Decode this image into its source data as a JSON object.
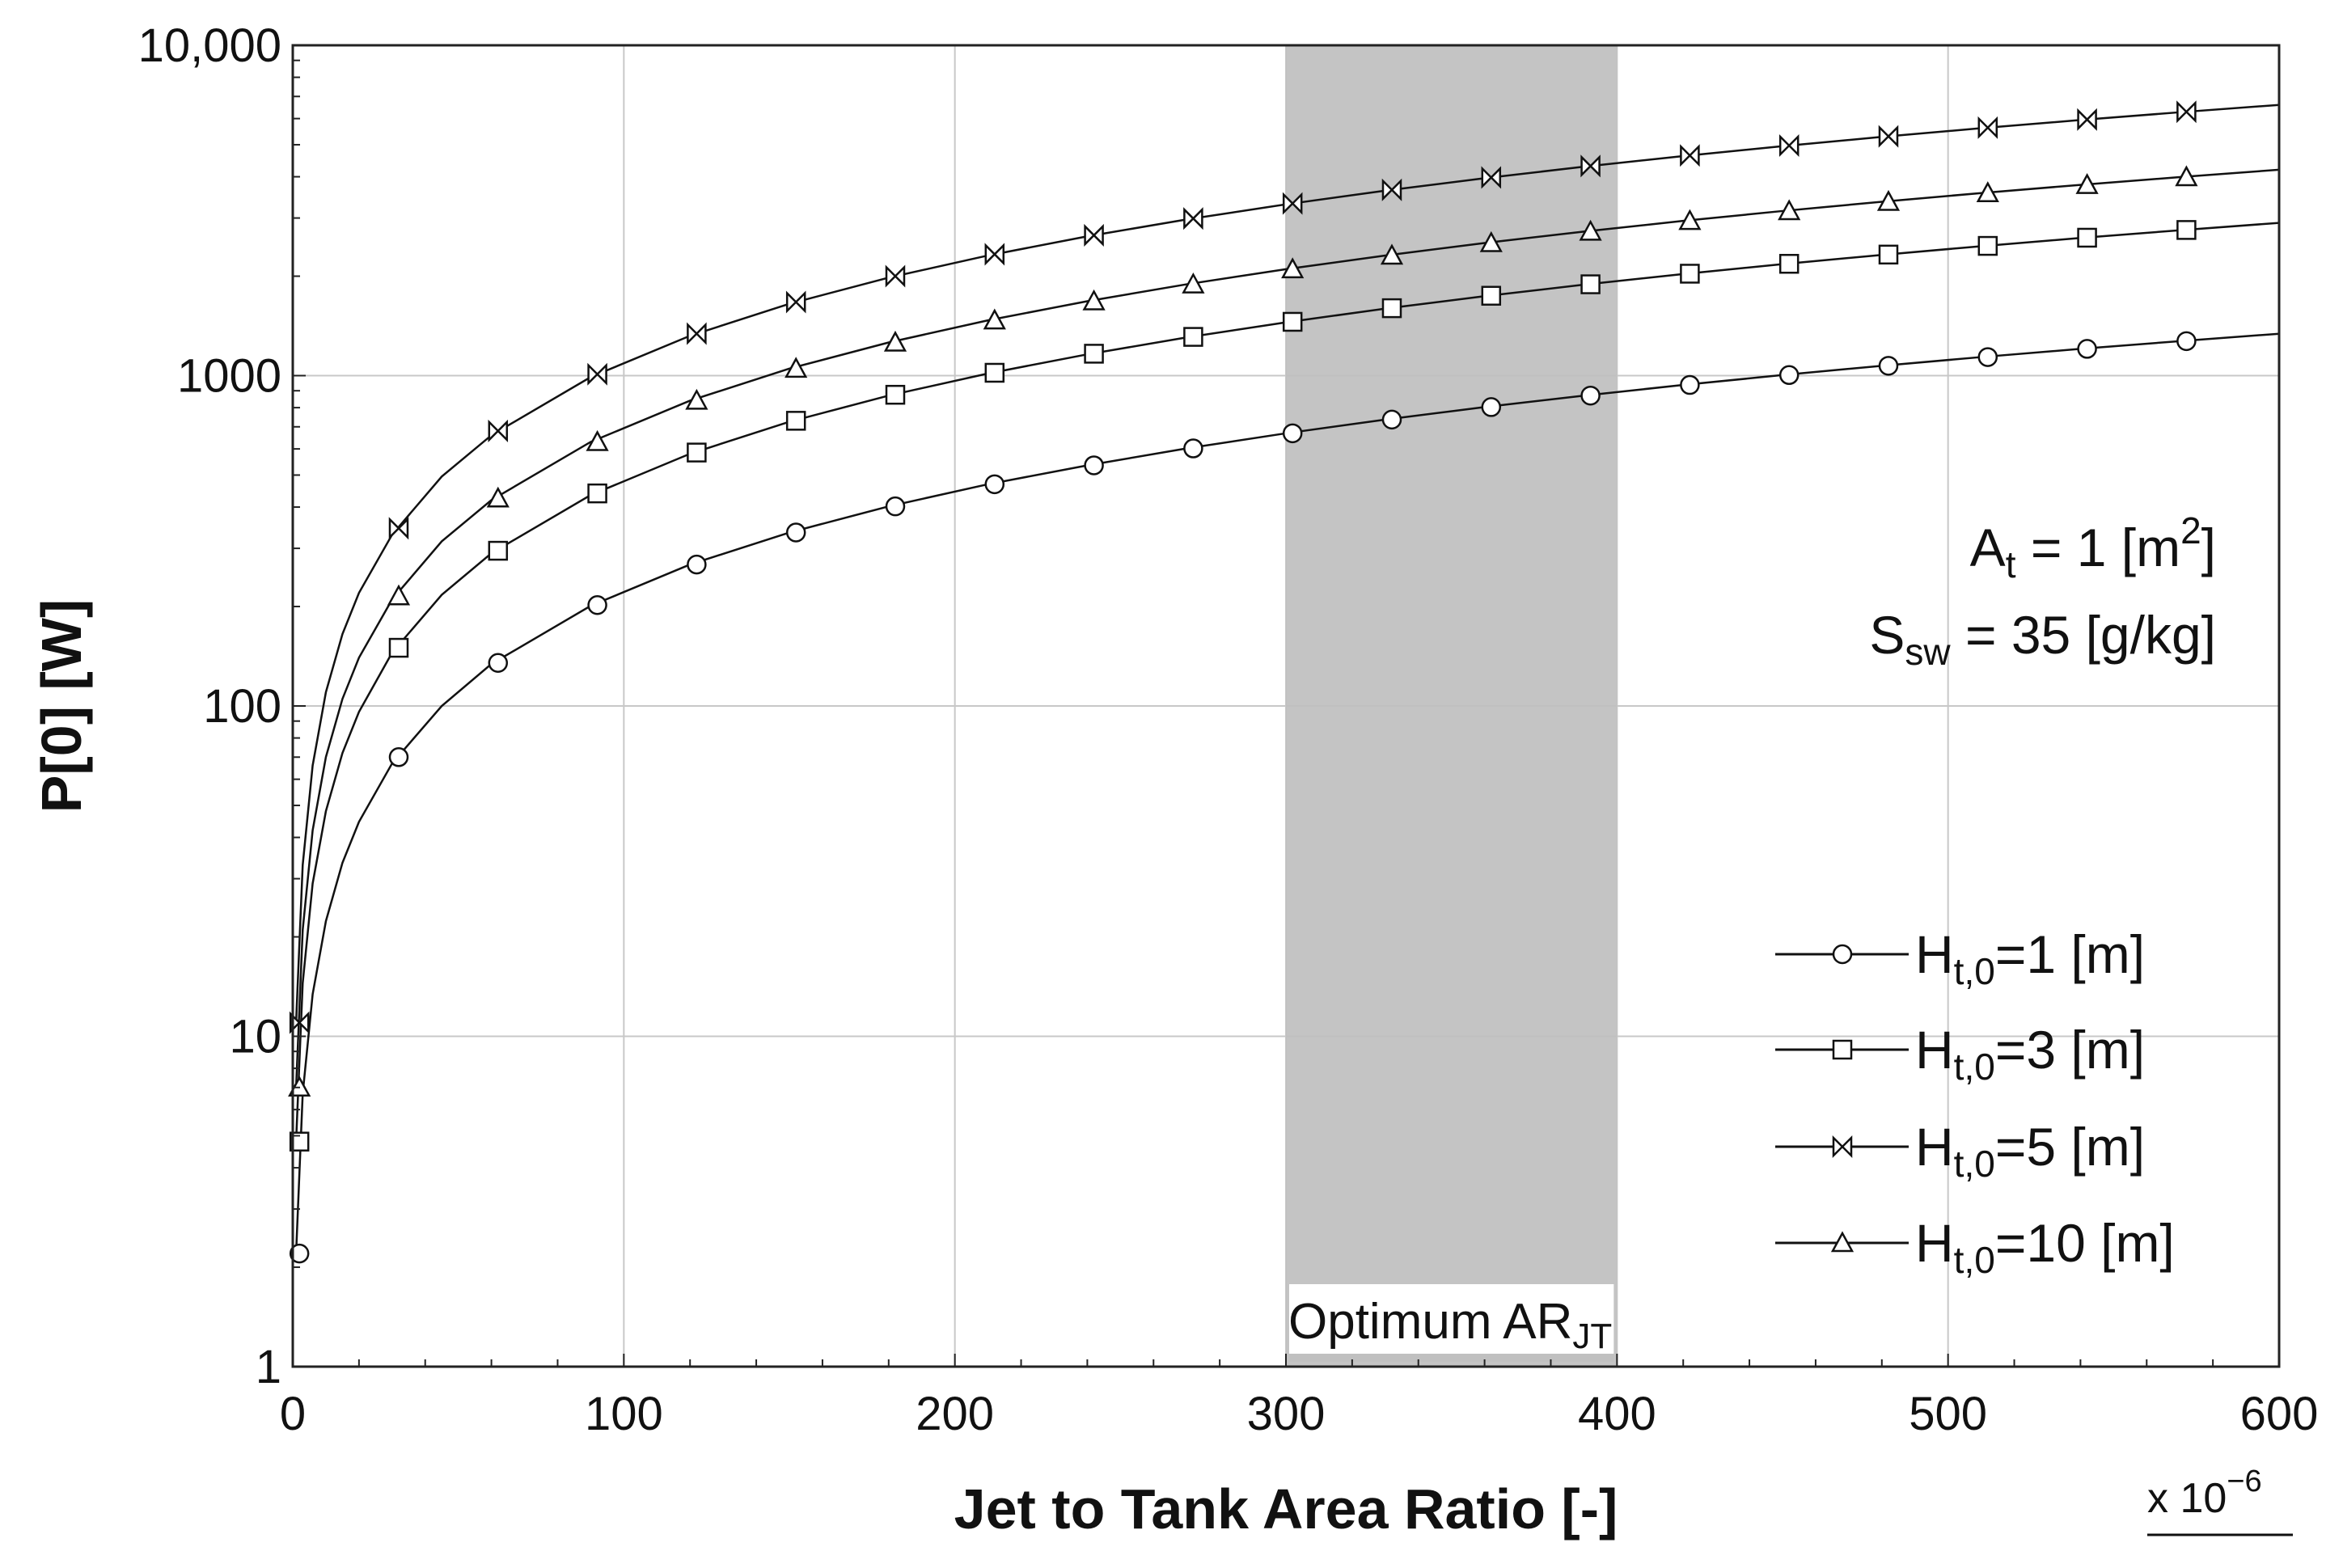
{
  "chart_data": {
    "type": "line",
    "xlabel": "Jet to Tank Area Ratio [-]",
    "ylabel": "P[0]  [W]",
    "xscale": "linear",
    "yscale": "log",
    "xlim": [
      0,
      600
    ],
    "ylim": [
      1,
      10000
    ],
    "x_multiplier_label": "x 10",
    "x_multiplier_exp": "−6",
    "xticks": [
      0,
      100,
      200,
      300,
      400,
      500,
      600
    ],
    "xtick_labels": [
      "0",
      "100",
      "200",
      "300",
      "400",
      "500",
      "600"
    ],
    "yticks": [
      1,
      10,
      100,
      1000,
      10000
    ],
    "ytick_labels": [
      "1",
      "10",
      "100",
      "1000",
      "10,000"
    ],
    "grid": true,
    "legend_position": "bottom-right",
    "optimum_band": {
      "x_range": [
        300,
        400
      ],
      "label": "Optimum AR",
      "label_sub": "JT"
    },
    "annotations": [
      {
        "main": "A",
        "sub": "t",
        "rest": " = 1 [m",
        "sup": "2",
        "end": "]"
      },
      {
        "main": "S",
        "sub": "sw",
        "rest": " = 35 [g/kg]",
        "sup": "",
        "end": ""
      }
    ],
    "x_line": [
      1,
      3,
      6,
      10,
      15,
      20,
      30,
      45,
      60,
      90,
      120,
      150,
      180,
      210,
      240,
      270,
      300,
      330,
      360,
      390,
      420,
      450,
      480,
      510,
      540,
      570,
      600
    ],
    "series": [
      {
        "name": "H_t,0=1 [m]",
        "label_main": "H",
        "label_sub": "t,0",
        "label_rest": "=1 [m]",
        "marker": "circle",
        "values": [
          2.2,
          6.7,
          13.4,
          22.3,
          33.5,
          44.6,
          67,
          100,
          134,
          201,
          268,
          335,
          402,
          469,
          535,
          602,
          669,
          736,
          803,
          870,
          937,
          1004,
          1071,
          1138,
          1205,
          1272,
          1339
        ],
        "marker_x": [
          2,
          32,
          62,
          92,
          122,
          152,
          182,
          212,
          242,
          272,
          302,
          332,
          362,
          392,
          422,
          452,
          482,
          512,
          542,
          572
        ],
        "marker_y": [
          2.2,
          70,
          135,
          202,
          268,
          335,
          402,
          469,
          535,
          602,
          669,
          736,
          803,
          870,
          937,
          1004,
          1071,
          1138,
          1205,
          1272
        ]
      },
      {
        "name": "H_t,0=3 [m]",
        "label_main": "H",
        "label_sub": "t,0",
        "label_rest": "=3 [m]",
        "marker": "square",
        "values": [
          4.8,
          14.5,
          29,
          48,
          72,
          96,
          145,
          217,
          290,
          435,
          580,
          725,
          870,
          1015,
          1160,
          1305,
          1450,
          1595,
          1740,
          1885,
          2030,
          2175,
          2320,
          2465,
          2610,
          2755,
          2900
        ],
        "marker_x": [
          2,
          32,
          62,
          92,
          122,
          152,
          182,
          212,
          242,
          272,
          302,
          332,
          362,
          392,
          422,
          452,
          482,
          512,
          542,
          572
        ],
        "marker_y": [
          4.8,
          150,
          295,
          440,
          585,
          730,
          875,
          1020,
          1165,
          1310,
          1455,
          1600,
          1745,
          1890,
          2035,
          2180,
          2325,
          2470,
          2615,
          2760
        ]
      },
      {
        "name": "H_t,0=5 [m]",
        "label_main": "H",
        "label_sub": "t,0",
        "label_rest": "=5 [m]",
        "marker": "bowtie",
        "values": [
          11,
          33,
          66,
          110,
          165,
          220,
          330,
          495,
          660,
          990,
          1320,
          1650,
          1980,
          2310,
          2640,
          2970,
          3300,
          3630,
          3960,
          4290,
          4620,
          4950,
          5280,
          5610,
          5940,
          6270,
          6600
        ],
        "marker_x": [
          2,
          32,
          62,
          92,
          122,
          152,
          182,
          212,
          242,
          272,
          302,
          332,
          362,
          392,
          422,
          452,
          482,
          512,
          542,
          572
        ],
        "marker_y": [
          11,
          345,
          680,
          1010,
          1340,
          1670,
          2000,
          2330,
          2660,
          2990,
          3320,
          3650,
          3980,
          4310,
          4640,
          4970,
          5300,
          5630,
          5960,
          6290
        ]
      },
      {
        "name": "H_t,0=10 [m]",
        "label_main": "H",
        "label_sub": "t,0",
        "label_rest": "=10 [m]",
        "marker": "triangle",
        "values": [
          7,
          21,
          42,
          70,
          105,
          140,
          210,
          315,
          420,
          630,
          840,
          1050,
          1260,
          1470,
          1680,
          1890,
          2100,
          2310,
          2520,
          2730,
          2940,
          3150,
          3360,
          3570,
          3780,
          3990,
          4200
        ],
        "marker_x": [
          2,
          32,
          62,
          92,
          122,
          152,
          182,
          212,
          242,
          272,
          302,
          332,
          362,
          392,
          422,
          452,
          482,
          512,
          542,
          572
        ],
        "marker_y": [
          7,
          215,
          425,
          630,
          840,
          1050,
          1260,
          1470,
          1680,
          1890,
          2100,
          2310,
          2520,
          2730,
          2940,
          3150,
          3360,
          3570,
          3780,
          3990
        ]
      }
    ]
  }
}
